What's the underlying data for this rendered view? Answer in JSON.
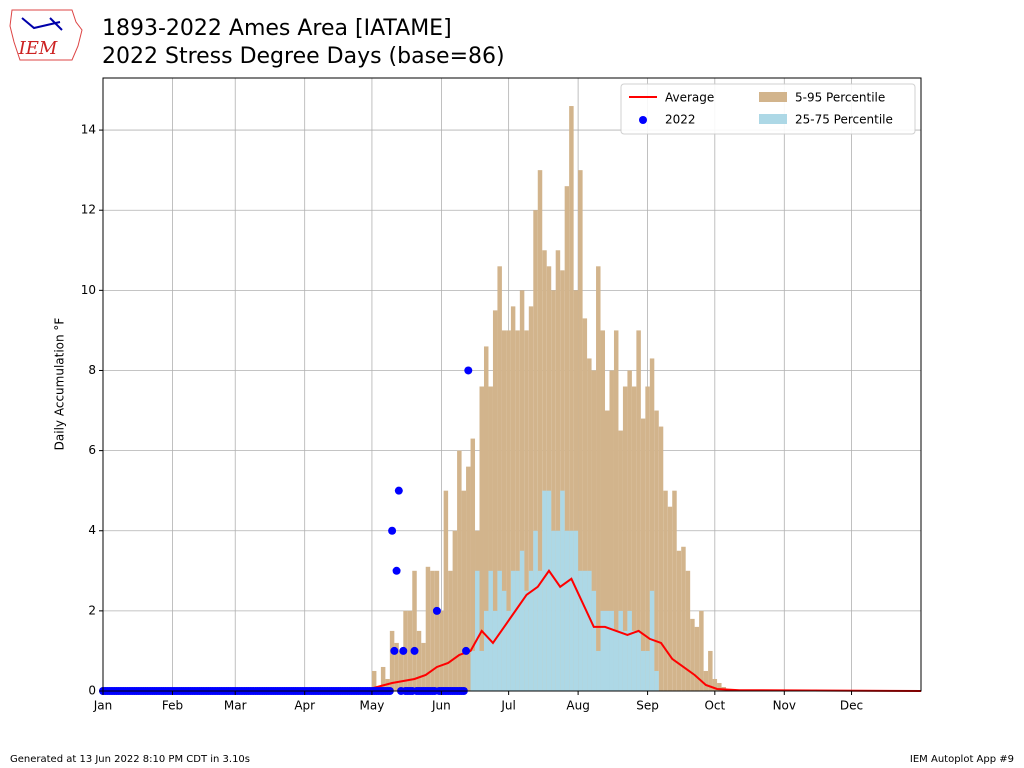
{
  "logo": "IEM",
  "footer_left": "Generated at 13 Jun 2022 8:10 PM CDT in 3.10s",
  "footer_right": "IEM Autoplot App #9",
  "chart_data": {
    "type": "bar",
    "title": "1893-2022 Ames Area [IATAME]",
    "subtitle": "2022 Stress Degree Days (base=86)",
    "ylabel": "Daily Accumulation °F",
    "xlim": [
      1,
      366
    ],
    "ylim": [
      0,
      15.3
    ],
    "xticks": [
      {
        "value": 1,
        "label": "Jan"
      },
      {
        "value": 32,
        "label": "Feb"
      },
      {
        "value": 60,
        "label": "Mar"
      },
      {
        "value": 91,
        "label": "Apr"
      },
      {
        "value": 121,
        "label": "May"
      },
      {
        "value": 152,
        "label": "Jun"
      },
      {
        "value": 182,
        "label": "Jul"
      },
      {
        "value": 213,
        "label": "Aug"
      },
      {
        "value": 244,
        "label": "Sep"
      },
      {
        "value": 274,
        "label": "Oct"
      },
      {
        "value": 305,
        "label": "Nov"
      },
      {
        "value": 335,
        "label": "Dec"
      }
    ],
    "yticks": [
      0,
      2,
      4,
      6,
      8,
      10,
      12,
      14
    ],
    "grid": true,
    "legend": "upper right",
    "series": [
      {
        "name": "Average",
        "type": "line",
        "color": "#ff0000",
        "x": [
          1,
          110,
          120,
          130,
          135,
          140,
          145,
          150,
          155,
          160,
          165,
          170,
          175,
          180,
          185,
          190,
          195,
          200,
          205,
          210,
          215,
          220,
          225,
          230,
          235,
          240,
          245,
          250,
          255,
          260,
          265,
          270,
          275,
          285,
          366
        ],
        "values": [
          0,
          0,
          0.05,
          0.2,
          0.25,
          0.3,
          0.4,
          0.6,
          0.7,
          0.9,
          1.0,
          1.5,
          1.2,
          1.6,
          2.0,
          2.4,
          2.6,
          3.0,
          2.6,
          2.8,
          2.2,
          1.6,
          1.6,
          1.5,
          1.4,
          1.5,
          1.3,
          1.2,
          0.8,
          0.6,
          0.4,
          0.15,
          0.05,
          0.02,
          0
        ]
      },
      {
        "name": "2022",
        "type": "scatter",
        "color": "#0000ff",
        "x": [
          1,
          2,
          3,
          4,
          5,
          6,
          7,
          8,
          9,
          10,
          11,
          12,
          13,
          14,
          15,
          16,
          17,
          18,
          19,
          20,
          21,
          22,
          23,
          24,
          25,
          26,
          27,
          28,
          29,
          30,
          31,
          32,
          33,
          34,
          35,
          36,
          37,
          38,
          39,
          40,
          41,
          42,
          43,
          44,
          45,
          46,
          47,
          48,
          49,
          50,
          51,
          52,
          53,
          54,
          55,
          56,
          57,
          58,
          59,
          60,
          61,
          62,
          63,
          64,
          65,
          66,
          67,
          68,
          69,
          70,
          71,
          72,
          73,
          74,
          75,
          76,
          77,
          78,
          79,
          80,
          81,
          82,
          83,
          84,
          85,
          86,
          87,
          88,
          89,
          90,
          91,
          92,
          93,
          94,
          95,
          96,
          97,
          98,
          99,
          100,
          101,
          102,
          103,
          104,
          105,
          106,
          107,
          108,
          109,
          110,
          111,
          112,
          113,
          114,
          115,
          116,
          117,
          118,
          119,
          120,
          121,
          122,
          123,
          124,
          125,
          126,
          127,
          128,
          129,
          130,
          131,
          132,
          133,
          134,
          135,
          136,
          137,
          138,
          139,
          140,
          141,
          142,
          143,
          144,
          145,
          146,
          147,
          148,
          149,
          150,
          151,
          152,
          153,
          154,
          155,
          156,
          157,
          158,
          159,
          160,
          161,
          162,
          163,
          164
        ],
        "values": [
          0,
          0,
          0,
          0,
          0,
          0,
          0,
          0,
          0,
          0,
          0,
          0,
          0,
          0,
          0,
          0,
          0,
          0,
          0,
          0,
          0,
          0,
          0,
          0,
          0,
          0,
          0,
          0,
          0,
          0,
          0,
          0,
          0,
          0,
          0,
          0,
          0,
          0,
          0,
          0,
          0,
          0,
          0,
          0,
          0,
          0,
          0,
          0,
          0,
          0,
          0,
          0,
          0,
          0,
          0,
          0,
          0,
          0,
          0,
          0,
          0,
          0,
          0,
          0,
          0,
          0,
          0,
          0,
          0,
          0,
          0,
          0,
          0,
          0,
          0,
          0,
          0,
          0,
          0,
          0,
          0,
          0,
          0,
          0,
          0,
          0,
          0,
          0,
          0,
          0,
          0,
          0,
          0,
          0,
          0,
          0,
          0,
          0,
          0,
          0,
          0,
          0,
          0,
          0,
          0,
          0,
          0,
          0,
          0,
          0,
          0,
          0,
          0,
          0,
          0,
          0,
          0,
          0,
          0,
          0,
          0,
          0,
          0,
          0,
          0,
          0,
          0,
          0,
          0,
          4,
          1,
          3,
          5,
          0,
          1,
          0,
          0,
          0,
          0,
          1,
          0,
          0,
          0,
          0,
          0,
          0,
          0,
          0,
          0,
          2,
          0,
          0,
          0,
          0,
          0,
          0,
          0,
          0,
          0,
          0,
          0,
          0,
          1,
          8
        ]
      },
      {
        "name": "5-95 Percentile",
        "type": "bar",
        "color": "#d2b48c",
        "width": 2,
        "x": [
          121,
          123,
          125,
          127,
          129,
          131,
          133,
          135,
          137,
          139,
          141,
          143,
          145,
          147,
          149,
          151,
          153,
          155,
          157,
          159,
          161,
          163,
          165,
          167,
          169,
          171,
          173,
          175,
          177,
          179,
          181,
          183,
          185,
          187,
          189,
          191,
          193,
          195,
          197,
          199,
          201,
          203,
          205,
          207,
          209,
          211,
          213,
          215,
          217,
          219,
          221,
          223,
          225,
          227,
          229,
          231,
          233,
          235,
          237,
          239,
          241,
          243,
          245,
          247,
          249,
          251,
          253,
          255,
          257,
          259,
          261,
          263,
          265,
          267,
          269,
          271,
          273,
          275,
          277,
          279,
          281
        ],
        "values": [
          0.5,
          0,
          0.6,
          0.3,
          1.5,
          1.2,
          1,
          2,
          2,
          3,
          1.5,
          1.2,
          3.1,
          3,
          3,
          2,
          5,
          3,
          4,
          6,
          5,
          5.6,
          6.3,
          4,
          7.6,
          8.6,
          7.6,
          9.5,
          10.6,
          9,
          9,
          9.6,
          9,
          10,
          9,
          9.6,
          12,
          13,
          11,
          10.6,
          10,
          11,
          10.5,
          12.6,
          14.6,
          10,
          13,
          9.3,
          8.3,
          8,
          10.6,
          9,
          7,
          8,
          9,
          6.5,
          7.6,
          8,
          7.6,
          9,
          6.8,
          7.6,
          8.3,
          7,
          6.6,
          5,
          4.6,
          5,
          3.5,
          3.6,
          3,
          1.8,
          1.6,
          2,
          0.5,
          1,
          0.3,
          0.2,
          0.1,
          0.05,
          0
        ]
      },
      {
        "name": "25-75 Percentile",
        "type": "bar",
        "color": "#add8e6",
        "width": 2,
        "x": [
          165,
          167,
          169,
          171,
          173,
          175,
          177,
          179,
          181,
          183,
          185,
          187,
          189,
          191,
          193,
          195,
          197,
          199,
          201,
          203,
          205,
          207,
          209,
          211,
          213,
          215,
          217,
          219,
          221,
          223,
          225,
          227,
          229,
          231,
          233,
          235,
          237,
          239,
          241,
          243,
          245,
          247
        ],
        "values": [
          1,
          3,
          1,
          2,
          3,
          2,
          3,
          2.5,
          2,
          3,
          3,
          3.5,
          2.5,
          3,
          4,
          3,
          5,
          5,
          4,
          4,
          5,
          4,
          4,
          4,
          3,
          3,
          3,
          2.5,
          1,
          2,
          2,
          2,
          1.5,
          2,
          1.5,
          2,
          1.5,
          1.5,
          1,
          1,
          2.5,
          0.5
        ]
      }
    ]
  }
}
